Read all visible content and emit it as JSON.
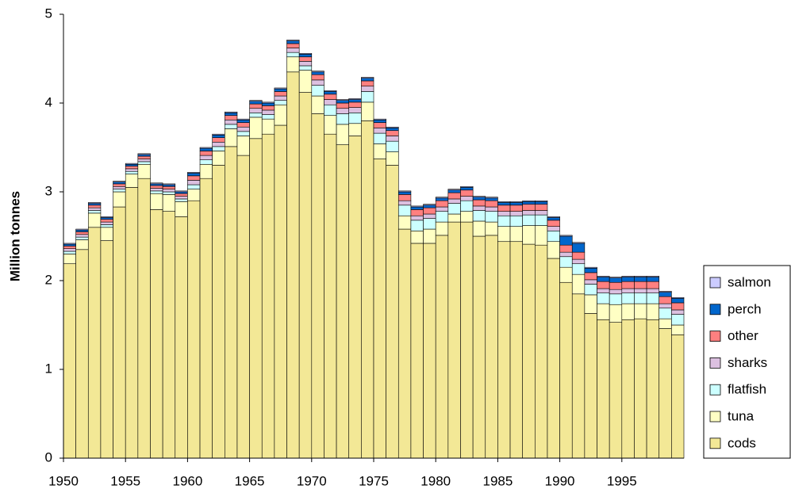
{
  "chart_data": {
    "type": "stacked-bar",
    "y_label": "Million tonnes",
    "x": [
      1950,
      1951,
      1952,
      1953,
      1954,
      1955,
      1956,
      1957,
      1958,
      1959,
      1960,
      1961,
      1962,
      1963,
      1964,
      1965,
      1966,
      1967,
      1968,
      1969,
      1970,
      1971,
      1972,
      1973,
      1974,
      1975,
      1976,
      1977,
      1978,
      1979,
      1980,
      1981,
      1982,
      1983,
      1984,
      1985,
      1986,
      1987,
      1988,
      1989,
      1990,
      1991,
      1992,
      1993,
      1994,
      1995,
      1996,
      1997,
      1998,
      1999
    ],
    "xlim": [
      1950,
      2000
    ],
    "xticks": [
      1950,
      1955,
      1960,
      1965,
      1970,
      1975,
      1980,
      1985,
      1990,
      1995
    ],
    "ylim": [
      0,
      5
    ],
    "yticks": [
      0,
      1,
      2,
      3,
      4,
      5
    ],
    "series": [
      {
        "name": "cods",
        "color": "#f3e896",
        "values": [
          2.19,
          2.35,
          2.6,
          2.45,
          2.83,
          3.05,
          3.15,
          2.8,
          2.78,
          2.72,
          2.9,
          3.15,
          3.3,
          3.51,
          3.41,
          3.6,
          3.65,
          3.75,
          4.35,
          4.12,
          3.88,
          3.65,
          3.53,
          3.63,
          3.8,
          3.37,
          3.3,
          2.58,
          2.42,
          2.42,
          2.51,
          2.66,
          2.66,
          2.5,
          2.51,
          2.44,
          2.44,
          2.41,
          2.4,
          2.25,
          1.98,
          1.85,
          1.63,
          1.56,
          1.53,
          1.56,
          1.57,
          1.56,
          1.46,
          1.39
        ]
      },
      {
        "name": "tuna",
        "color": "#ffffc4",
        "values": [
          0.11,
          0.11,
          0.16,
          0.15,
          0.17,
          0.15,
          0.16,
          0.18,
          0.19,
          0.17,
          0.13,
          0.16,
          0.16,
          0.2,
          0.22,
          0.24,
          0.17,
          0.23,
          0.17,
          0.25,
          0.2,
          0.21,
          0.23,
          0.14,
          0.21,
          0.17,
          0.15,
          0.15,
          0.14,
          0.16,
          0.15,
          0.09,
          0.12,
          0.17,
          0.15,
          0.17,
          0.17,
          0.21,
          0.22,
          0.19,
          0.17,
          0.22,
          0.21,
          0.18,
          0.2,
          0.18,
          0.17,
          0.18,
          0.11,
          0.11
        ]
      },
      {
        "name": "flatfish",
        "color": "#ccffff",
        "values": [
          0.03,
          0.03,
          0.03,
          0.03,
          0.03,
          0.03,
          0.03,
          0.03,
          0.03,
          0.03,
          0.05,
          0.05,
          0.05,
          0.05,
          0.05,
          0.05,
          0.05,
          0.05,
          0.05,
          0.05,
          0.12,
          0.12,
          0.12,
          0.12,
          0.12,
          0.12,
          0.12,
          0.12,
          0.12,
          0.12,
          0.12,
          0.12,
          0.12,
          0.12,
          0.12,
          0.12,
          0.12,
          0.12,
          0.12,
          0.12,
          0.12,
          0.12,
          0.12,
          0.12,
          0.12,
          0.12,
          0.12,
          0.12,
          0.12,
          0.12
        ]
      },
      {
        "name": "sharks",
        "color": "#dcc0e0",
        "values": [
          0.03,
          0.03,
          0.03,
          0.03,
          0.03,
          0.03,
          0.03,
          0.03,
          0.03,
          0.03,
          0.05,
          0.05,
          0.05,
          0.05,
          0.05,
          0.05,
          0.05,
          0.05,
          0.05,
          0.05,
          0.06,
          0.06,
          0.06,
          0.06,
          0.06,
          0.06,
          0.06,
          0.05,
          0.05,
          0.05,
          0.05,
          0.05,
          0.05,
          0.05,
          0.05,
          0.05,
          0.05,
          0.05,
          0.05,
          0.05,
          0.05,
          0.05,
          0.05,
          0.05,
          0.05,
          0.05,
          0.05,
          0.05,
          0.05,
          0.05
        ]
      },
      {
        "name": "other",
        "color": "#ff8080",
        "values": [
          0.03,
          0.03,
          0.03,
          0.03,
          0.03,
          0.03,
          0.03,
          0.03,
          0.03,
          0.03,
          0.05,
          0.05,
          0.05,
          0.05,
          0.05,
          0.05,
          0.05,
          0.05,
          0.05,
          0.05,
          0.06,
          0.06,
          0.06,
          0.06,
          0.06,
          0.06,
          0.06,
          0.07,
          0.07,
          0.07,
          0.07,
          0.07,
          0.07,
          0.07,
          0.07,
          0.07,
          0.07,
          0.07,
          0.07,
          0.07,
          0.08,
          0.08,
          0.08,
          0.08,
          0.08,
          0.08,
          0.08,
          0.08,
          0.08,
          0.08
        ]
      },
      {
        "name": "perch",
        "color": "#0066cc",
        "values": [
          0.02,
          0.02,
          0.02,
          0.02,
          0.02,
          0.02,
          0.02,
          0.02,
          0.02,
          0.02,
          0.03,
          0.03,
          0.03,
          0.03,
          0.03,
          0.03,
          0.03,
          0.03,
          0.03,
          0.03,
          0.03,
          0.03,
          0.03,
          0.03,
          0.03,
          0.03,
          0.03,
          0.03,
          0.03,
          0.03,
          0.03,
          0.03,
          0.03,
          0.03,
          0.03,
          0.03,
          0.03,
          0.03,
          0.03,
          0.03,
          0.1,
          0.1,
          0.05,
          0.05,
          0.05,
          0.05,
          0.05,
          0.05,
          0.05,
          0.05
        ]
      },
      {
        "name": "salmon",
        "color": "#ccccff",
        "values": [
          0.01,
          0.01,
          0.01,
          0.01,
          0.01,
          0.01,
          0.01,
          0.01,
          0.01,
          0.01,
          0.01,
          0.01,
          0.01,
          0.01,
          0.01,
          0.01,
          0.01,
          0.01,
          0.01,
          0.01,
          0.01,
          0.01,
          0.01,
          0.01,
          0.01,
          0.01,
          0.01,
          0.01,
          0.01,
          0.01,
          0.01,
          0.01,
          0.01,
          0.01,
          0.01,
          0.01,
          0.01,
          0.01,
          0.01,
          0.01,
          0.01,
          0.01,
          0.01,
          0.01,
          0.01,
          0.01,
          0.01,
          0.01,
          0.01,
          0.01
        ]
      }
    ]
  }
}
